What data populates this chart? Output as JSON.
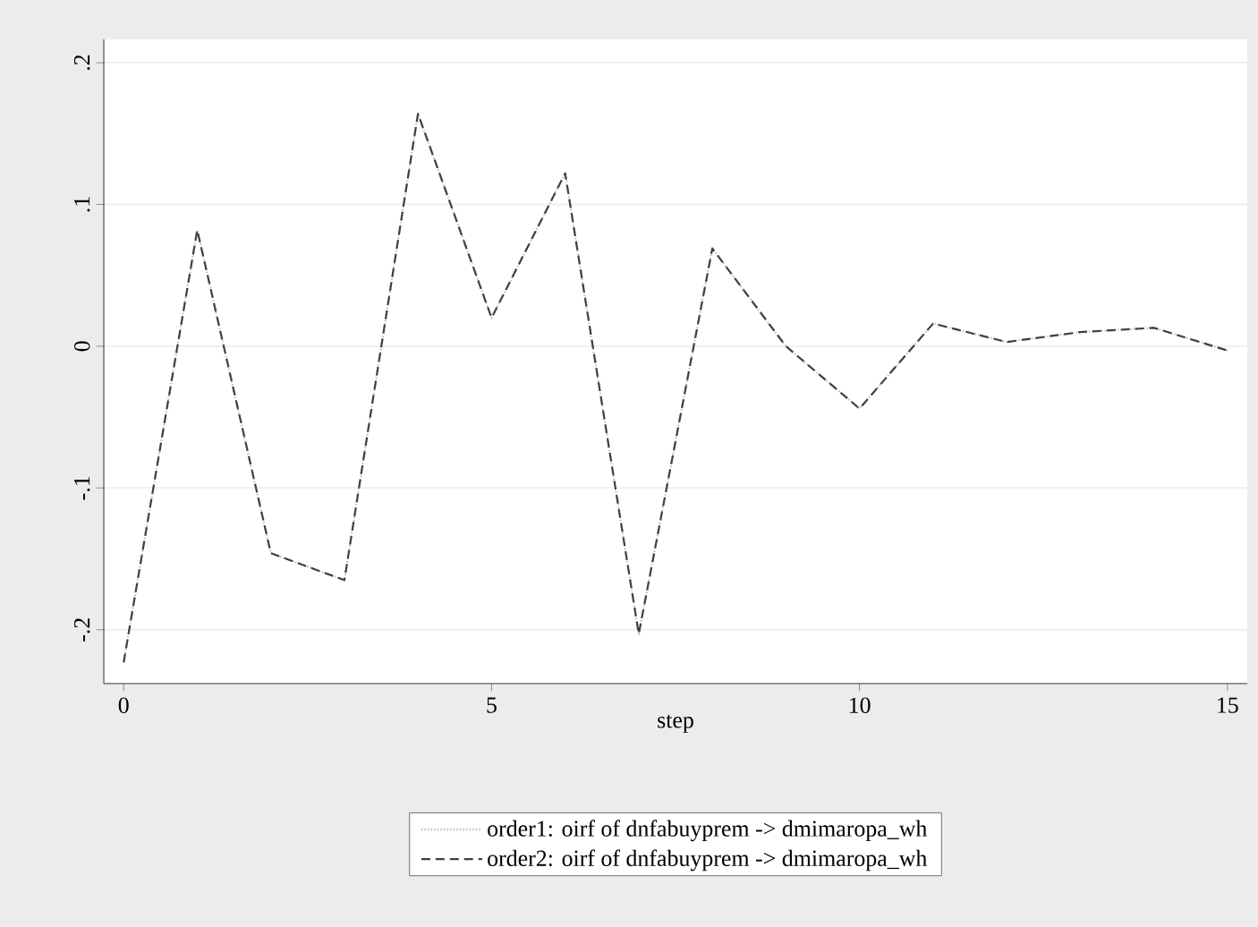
{
  "chart_data": {
    "type": "line",
    "xlabel": "step",
    "x": [
      0,
      1,
      2,
      3,
      4,
      5,
      6,
      7,
      8,
      9,
      10,
      11,
      12,
      13,
      14,
      15
    ],
    "series": [
      {
        "name": "order1: oirf of dnfabuyprem -> dmimaropa_wh",
        "color": "#b0b0b0",
        "line_style": "dotted",
        "values": [
          -0.223,
          0.082,
          -0.146,
          -0.165,
          0.164,
          0.02,
          0.122,
          -0.203,
          0.069,
          0.0,
          -0.044,
          0.016,
          0.003,
          0.01,
          0.013,
          -0.003
        ]
      },
      {
        "name": "order2: oirf of dnfabuyprem -> dmimaropa_wh",
        "color": "#404040",
        "line_style": "dashed",
        "values": [
          -0.223,
          0.082,
          -0.146,
          -0.165,
          0.164,
          0.02,
          0.122,
          -0.203,
          0.069,
          0.0,
          -0.044,
          0.016,
          0.003,
          0.01,
          0.013,
          -0.003
        ]
      }
    ],
    "xlim": [
      -0.27,
      15.27
    ],
    "ylim": [
      -0.238,
      0.2165
    ],
    "xticks": [
      0,
      5,
      10,
      15
    ],
    "yticks": [
      {
        "value": -0.2,
        "label": "-.2"
      },
      {
        "value": -0.1,
        "label": "-.1"
      },
      0,
      {
        "value": 0.1,
        "label": ".1"
      },
      {
        "value": 0.2,
        "label": ".2"
      }
    ],
    "grid": "y",
    "legend": "bottom",
    "marker": "none"
  }
}
